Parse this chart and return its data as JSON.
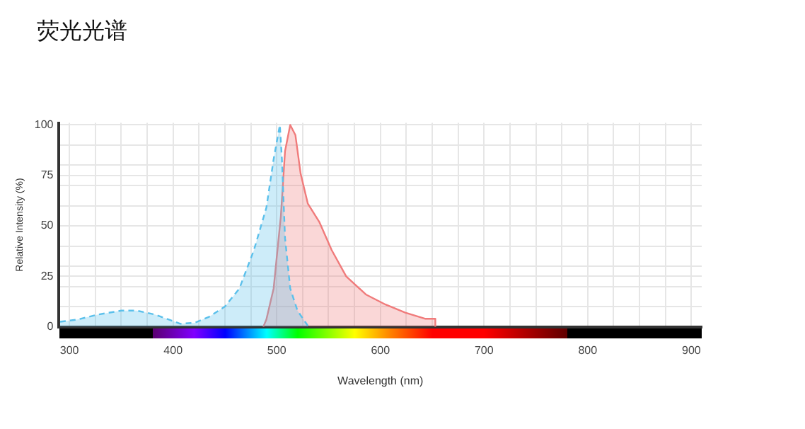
{
  "chart_data": {
    "type": "area",
    "title": "荧光光谱",
    "xlabel": "Wavelength (nm)",
    "ylabel": "Relative Intensity (%)",
    "xlim": [
      290,
      910
    ],
    "xticks": [
      300,
      {
        "value": 325,
        "label": null
      },
      {
        "value": 350,
        "label": null
      },
      {
        "value": 375,
        "label": null
      },
      400,
      {
        "value": 425,
        "label": null
      },
      {
        "value": 450,
        "label": null
      },
      {
        "value": 475,
        "label": null
      },
      500,
      {
        "value": 525,
        "label": null
      },
      {
        "value": 550,
        "label": null
      },
      {
        "value": 575,
        "label": null
      },
      600,
      {
        "value": 625,
        "label": null
      },
      {
        "value": 650,
        "label": null
      },
      {
        "value": 675,
        "label": null
      },
      700,
      {
        "value": 725,
        "label": null
      },
      {
        "value": 750,
        "label": null
      },
      {
        "value": 775,
        "label": null
      },
      800,
      {
        "value": 825,
        "label": null
      },
      {
        "value": 850,
        "label": null
      },
      {
        "value": 875,
        "label": null
      },
      900
    ],
    "ylim": [
      0,
      101
    ],
    "yticks": [
      0,
      {
        "value": 10,
        "label": null
      },
      {
        "value": 20,
        "label": null
      },
      25,
      {
        "value": 30,
        "label": null
      },
      {
        "value": 40,
        "label": null
      },
      50,
      {
        "value": 60,
        "label": null
      },
      {
        "value": 70,
        "label": null
      },
      75,
      {
        "value": 80,
        "label": null
      },
      {
        "value": 90,
        "label": null
      },
      100
    ],
    "grid": true,
    "legend": false,
    "marker": "none",
    "series": [
      {
        "color": "#5bc0eb",
        "line_style": "dashed",
        "x": [
          291,
          308,
          327,
          350,
          365,
          383,
          407,
          421,
          435,
          450,
          464,
          478,
          490,
          497,
          503,
          505,
          508,
          513,
          520,
          530
        ],
        "values": [
          2.5,
          3.6,
          6,
          8,
          8,
          6,
          1.5,
          2,
          5,
          10,
          19,
          38,
          59,
          83,
          100,
          83,
          44,
          19,
          8,
          0.5
        ]
      },
      {
        "color": "#f07b7b",
        "line_style": "solid",
        "x": [
          487,
          490,
          497,
          504,
          508,
          513,
          518,
          523,
          530,
          541,
          553,
          567,
          586,
          605,
          624,
          643,
          653,
          653
        ],
        "values": [
          0,
          3.6,
          19,
          55,
          87,
          100,
          95,
          76,
          61,
          52,
          38,
          25,
          16,
          11,
          7,
          4,
          4,
          0
        ]
      }
    ]
  }
}
